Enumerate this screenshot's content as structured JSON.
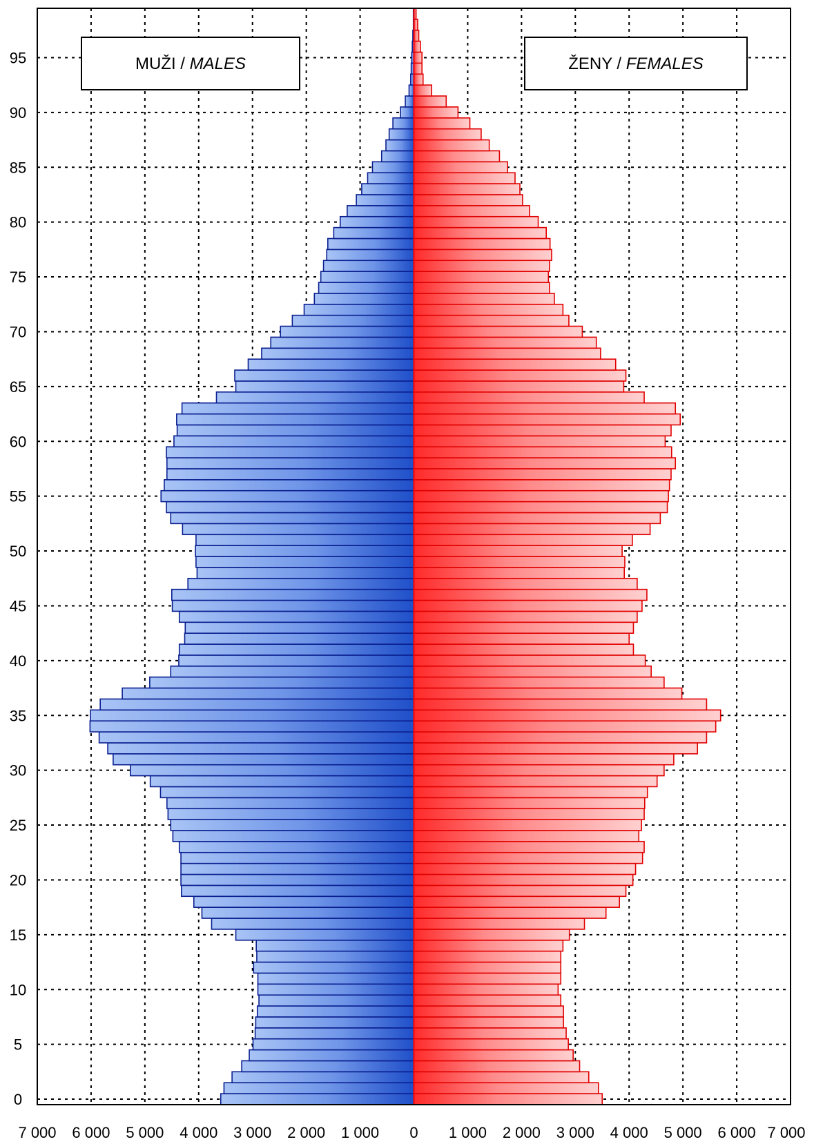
{
  "chart_data": {
    "type": "bar",
    "subtype": "population-pyramid",
    "orientation": "horizontal",
    "ages": [
      0,
      1,
      2,
      3,
      4,
      5,
      6,
      7,
      8,
      9,
      10,
      11,
      12,
      13,
      14,
      15,
      16,
      17,
      18,
      19,
      20,
      21,
      22,
      23,
      24,
      25,
      26,
      27,
      28,
      29,
      30,
      31,
      32,
      33,
      34,
      35,
      36,
      37,
      38,
      39,
      40,
      41,
      42,
      43,
      44,
      45,
      46,
      47,
      48,
      49,
      50,
      51,
      52,
      53,
      54,
      55,
      56,
      57,
      58,
      59,
      60,
      61,
      62,
      63,
      64,
      65,
      66,
      67,
      68,
      69,
      70,
      71,
      72,
      73,
      74,
      75,
      76,
      77,
      78,
      79,
      80,
      81,
      82,
      83,
      84,
      85,
      86,
      87,
      88,
      89,
      90,
      91,
      92,
      93,
      94,
      95,
      96,
      97,
      98,
      99
    ],
    "series": [
      {
        "name": "MUŽI / MALES",
        "color": "#1a46b8",
        "values": [
          3590,
          3530,
          3380,
          3200,
          3060,
          2990,
          2950,
          2940,
          2910,
          2880,
          2900,
          2900,
          2980,
          2920,
          2930,
          3310,
          3760,
          3940,
          4090,
          4320,
          4330,
          4330,
          4330,
          4360,
          4480,
          4520,
          4570,
          4590,
          4710,
          4900,
          5270,
          5590,
          5690,
          5850,
          6020,
          6010,
          5830,
          5420,
          4910,
          4520,
          4370,
          4360,
          4260,
          4250,
          4360,
          4490,
          4500,
          4200,
          4030,
          4050,
          4060,
          4050,
          4300,
          4520,
          4600,
          4700,
          4640,
          4590,
          4590,
          4600,
          4460,
          4400,
          4410,
          4310,
          3670,
          3310,
          3330,
          3080,
          2830,
          2660,
          2480,
          2260,
          2040,
          1850,
          1770,
          1730,
          1680,
          1620,
          1600,
          1490,
          1370,
          1240,
          1070,
          970,
          860,
          770,
          600,
          520,
          460,
          390,
          250,
          160,
          90,
          60,
          50,
          40,
          30,
          20,
          10,
          10
        ]
      },
      {
        "name": "ŽENY / FEMALES",
        "color": "#ff1a1a",
        "values": [
          3500,
          3430,
          3250,
          3080,
          2960,
          2870,
          2830,
          2780,
          2780,
          2730,
          2680,
          2730,
          2730,
          2730,
          2770,
          2890,
          3170,
          3570,
          3820,
          3940,
          4070,
          4120,
          4250,
          4280,
          4180,
          4230,
          4280,
          4290,
          4340,
          4520,
          4650,
          4830,
          5270,
          5440,
          5610,
          5700,
          5440,
          4980,
          4650,
          4410,
          4300,
          4080,
          4000,
          4080,
          4150,
          4240,
          4330,
          4150,
          3910,
          3920,
          3870,
          4060,
          4390,
          4580,
          4710,
          4730,
          4750,
          4780,
          4860,
          4790,
          4670,
          4780,
          4950,
          4860,
          4280,
          3900,
          3940,
          3750,
          3470,
          3390,
          3130,
          2880,
          2770,
          2610,
          2520,
          2500,
          2520,
          2560,
          2530,
          2460,
          2310,
          2150,
          2020,
          1970,
          1880,
          1740,
          1590,
          1400,
          1250,
          1040,
          820,
          600,
          330,
          170,
          150,
          150,
          120,
          90,
          70,
          40
        ]
      }
    ],
    "xlim": [
      -7000,
      7000
    ],
    "ylim": [
      0,
      100
    ],
    "x_tick_values": [
      -7000,
      -6000,
      -5000,
      -4000,
      -3000,
      -2000,
      -1000,
      0,
      1000,
      2000,
      3000,
      4000,
      5000,
      6000,
      7000
    ],
    "x_tick_labels": [
      "7 000",
      "6 000",
      "5 000",
      "4 000",
      "3 000",
      "2 000",
      "1 000",
      "0",
      "1 000",
      "2 000",
      "3 000",
      "4 000",
      "5 000",
      "6 000",
      "7 000"
    ],
    "y_tick_values": [
      0,
      5,
      10,
      15,
      20,
      25,
      30,
      35,
      40,
      45,
      50,
      55,
      60,
      65,
      70,
      75,
      80,
      85,
      90,
      95
    ],
    "y_tick_labels": [
      "0",
      "5",
      "10",
      "15",
      "20",
      "25",
      "30",
      "35",
      "40",
      "45",
      "50",
      "55",
      "60",
      "65",
      "70",
      "75",
      "80",
      "85",
      "90",
      "95"
    ],
    "grid": true,
    "grid_style": "dotted",
    "title": "",
    "xlabel": "",
    "ylabel": "",
    "legend": [
      {
        "label_plain": "MUŽI / ",
        "label_italic": "MALES",
        "placement": "top-left"
      },
      {
        "label_plain": "ŽENY / ",
        "label_italic": "FEMALES",
        "placement": "top-right"
      }
    ]
  }
}
